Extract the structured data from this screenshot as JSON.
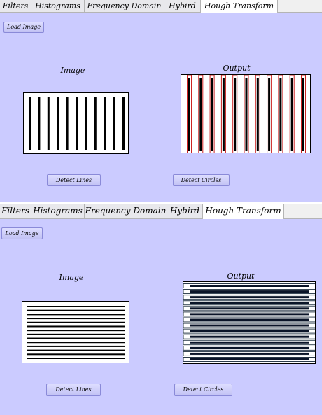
{
  "tabs": [
    {
      "label": "Filters"
    },
    {
      "label": "Histograms"
    },
    {
      "label": "Frequency Domain"
    },
    {
      "label": "Hybird"
    },
    {
      "label": "Hough Transform"
    }
  ],
  "active_tab": "Hough Transform",
  "buttons": {
    "load_image": "Load Image",
    "detect_lines": "Detect Lines",
    "detect_circles": "Detect Circles"
  },
  "labels": {
    "image": "Image",
    "output": "Output"
  },
  "colors": {
    "panel_bg": "#cbcbff",
    "detected_line": "#cc2222"
  },
  "views": [
    {
      "pattern": "vertical-bars",
      "input_bars": 11,
      "output_bars": 11
    },
    {
      "pattern": "horizontal-bars",
      "input_bars": 14,
      "output_bars": 14
    }
  ]
}
